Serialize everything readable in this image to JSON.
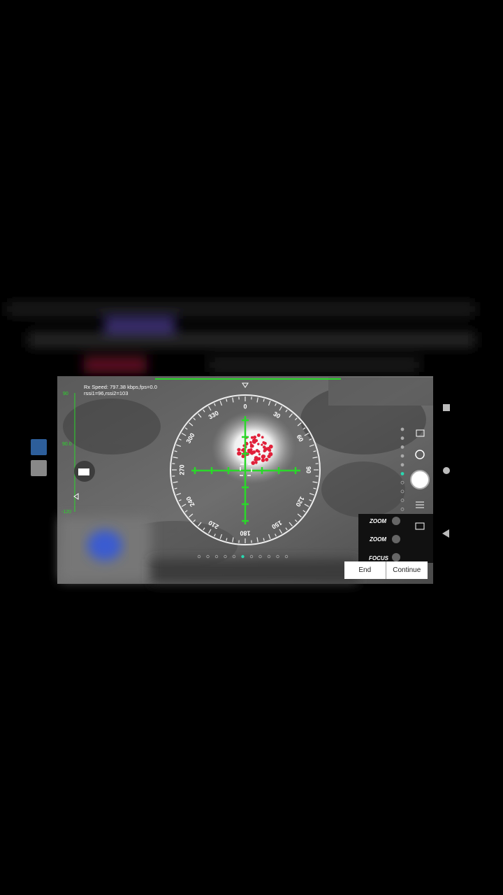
{
  "telemetry": {
    "rx_speed": "Rx Speed: 797.38 kbps,fps=0.0",
    "rssi": "rssi1=96,rssi2=103"
  },
  "gimbal_scale": {
    "top": "90",
    "middle": "90.0",
    "bottom": "-120"
  },
  "compass": {
    "labels": [
      0,
      30,
      60,
      90,
      120,
      150,
      180,
      210,
      240,
      270,
      300,
      330
    ]
  },
  "camera_controls": {
    "zoom_in": "ZOOM",
    "zoom_out": "ZOOM",
    "focus": "FOCUS"
  },
  "dialog": {
    "end": "End",
    "continue": "Continue"
  }
}
